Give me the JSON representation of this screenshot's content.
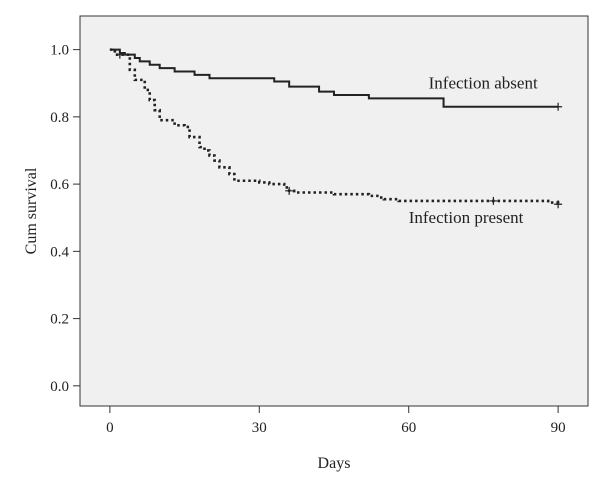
{
  "chart_data": {
    "type": "line",
    "title": "",
    "xlabel": "Days",
    "ylabel": "Cum survival",
    "xlim": [
      -6,
      96
    ],
    "ylim": [
      -0.06,
      1.1
    ],
    "xticks": [
      0,
      30,
      60,
      90
    ],
    "yticks": [
      0.0,
      0.2,
      0.4,
      0.6,
      0.8,
      1.0
    ],
    "xtick_labels": [
      "0",
      "30",
      "60",
      "90"
    ],
    "ytick_labels": [
      "0.0",
      "0.2",
      "0.4",
      "0.6",
      "0.8",
      "1.0"
    ],
    "grid": false,
    "plot_background": "#f0f0f0",
    "series": [
      {
        "name": "Infection absent",
        "style": "solid",
        "color": "#222222",
        "x": [
          0,
          2,
          3,
          5,
          6,
          8,
          10,
          13,
          17,
          20,
          33,
          36,
          42,
          45,
          52,
          67,
          90
        ],
        "y": [
          1.0,
          0.99,
          0.985,
          0.975,
          0.965,
          0.955,
          0.945,
          0.935,
          0.925,
          0.915,
          0.905,
          0.89,
          0.875,
          0.865,
          0.855,
          0.83,
          0.83
        ],
        "censored": [
          {
            "x": 90,
            "y": 0.83
          }
        ]
      },
      {
        "name": "Infection present",
        "style": "dotted",
        "color": "#222222",
        "x": [
          0,
          1,
          4,
          5,
          7,
          8,
          9,
          10,
          13,
          15,
          16,
          18,
          19,
          20,
          21,
          22,
          24,
          25,
          30,
          32,
          35,
          36,
          37,
          38,
          43,
          45,
          52,
          54,
          55,
          58,
          60,
          75,
          88,
          90
        ],
        "y": [
          1.0,
          0.985,
          0.94,
          0.91,
          0.88,
          0.85,
          0.82,
          0.79,
          0.775,
          0.77,
          0.74,
          0.71,
          0.7,
          0.685,
          0.67,
          0.65,
          0.63,
          0.61,
          0.605,
          0.6,
          0.59,
          0.58,
          0.575,
          0.575,
          0.575,
          0.57,
          0.565,
          0.56,
          0.555,
          0.55,
          0.55,
          0.55,
          0.545,
          0.54
        ],
        "censored": [
          {
            "x": 2,
            "y": 0.985
          },
          {
            "x": 36,
            "y": 0.58
          },
          {
            "x": 77,
            "y": 0.55
          },
          {
            "x": 90,
            "y": 0.54
          }
        ]
      }
    ],
    "annotations": [
      {
        "text": "Infection absent",
        "x": 64,
        "y": 0.885,
        "anchor": "start"
      },
      {
        "text": "Infection present",
        "x": 60,
        "y": 0.485,
        "anchor": "start"
      }
    ]
  }
}
